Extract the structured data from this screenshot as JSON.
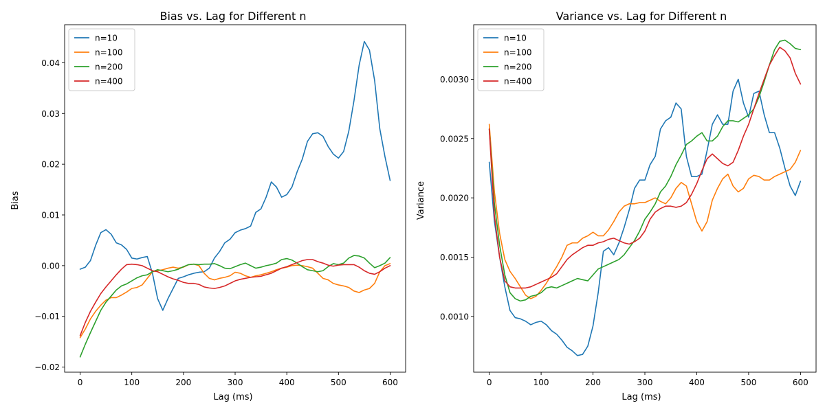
{
  "chart_data": [
    {
      "type": "line",
      "title": "Bias vs. Lag for Different n",
      "xlabel": "Lag (ms)",
      "ylabel": "Bias",
      "xlim": [
        -30,
        630
      ],
      "ylim": [
        -0.021,
        0.0475
      ],
      "xticks": [
        0,
        100,
        200,
        300,
        400,
        500,
        600
      ],
      "xtick_labels": [
        "0",
        "100",
        "200",
        "300",
        "400",
        "500",
        "600"
      ],
      "yticks": [
        -0.02,
        -0.01,
        0.0,
        0.01,
        0.02,
        0.03,
        0.04
      ],
      "ytick_labels": [
        "−0.02",
        "−0.01",
        "0.00",
        "0.01",
        "0.02",
        "0.03",
        "0.04"
      ],
      "grid": false,
      "legend": "top-left",
      "x": [
        0,
        10,
        20,
        30,
        40,
        50,
        60,
        70,
        80,
        90,
        100,
        110,
        120,
        130,
        140,
        150,
        160,
        170,
        180,
        190,
        200,
        210,
        220,
        230,
        240,
        250,
        260,
        270,
        280,
        290,
        300,
        310,
        320,
        330,
        340,
        350,
        360,
        370,
        380,
        390,
        400,
        410,
        420,
        430,
        440,
        450,
        460,
        470,
        480,
        490,
        500,
        510,
        520,
        530,
        540,
        550,
        560,
        570,
        580,
        590,
        600
      ],
      "series": [
        {
          "name": "n=10",
          "color": "#1f77b4",
          "values": [
            -0.0007,
            -0.0003,
            0.001,
            0.004,
            0.0065,
            0.0071,
            0.0062,
            0.0045,
            0.0041,
            0.0032,
            0.0015,
            0.0013,
            0.0016,
            0.0018,
            -0.0015,
            -0.0065,
            -0.0088,
            -0.0065,
            -0.0045,
            -0.0025,
            -0.0022,
            -0.0018,
            -0.0015,
            -0.0013,
            -0.0012,
            -0.0005,
            0.0015,
            0.0028,
            0.0045,
            0.0052,
            0.0065,
            0.007,
            0.0073,
            0.0078,
            0.0105,
            0.0112,
            0.0135,
            0.0165,
            0.0155,
            0.0135,
            0.014,
            0.0155,
            0.0185,
            0.021,
            0.0245,
            0.026,
            0.0262,
            0.0255,
            0.0235,
            0.022,
            0.0212,
            0.0225,
            0.0265,
            0.0325,
            0.0395,
            0.0442,
            0.0425,
            0.0365,
            0.027,
            0.0215,
            0.0168
          ]
        },
        {
          "name": "n=100",
          "color": "#ff7f0e",
          "values": [
            -0.0142,
            -0.0125,
            -0.0105,
            -0.009,
            -0.0078,
            -0.0068,
            -0.0063,
            -0.0063,
            -0.0058,
            -0.0052,
            -0.0045,
            -0.0043,
            -0.0038,
            -0.0025,
            -0.0012,
            -0.001,
            -0.0008,
            -0.0005,
            -0.0003,
            -0.0005,
            -0.0003,
            0.0002,
            0.0003,
            0.0,
            -0.0015,
            -0.0025,
            -0.0028,
            -0.0025,
            -0.0023,
            -0.002,
            -0.0013,
            -0.0015,
            -0.002,
            -0.0023,
            -0.002,
            -0.0018,
            -0.0015,
            -0.0012,
            -0.0008,
            -0.0005,
            -0.0003,
            0.0,
            0.0001,
            0.0,
            -0.0002,
            -0.0005,
            -0.0015,
            -0.0025,
            -0.0028,
            -0.0035,
            -0.0038,
            -0.004,
            -0.0043,
            -0.005,
            -0.0053,
            -0.0048,
            -0.0045,
            -0.0035,
            -0.0012,
            0.0,
            0.0004
          ]
        },
        {
          "name": "n=200",
          "color": "#2ca02c",
          "values": [
            -0.018,
            -0.0155,
            -0.0132,
            -0.011,
            -0.0088,
            -0.0072,
            -0.006,
            -0.0048,
            -0.004,
            -0.0036,
            -0.003,
            -0.0024,
            -0.002,
            -0.0018,
            -0.0012,
            -0.0008,
            -0.001,
            -0.0012,
            -0.001,
            -0.0007,
            -0.0002,
            0.0002,
            0.0003,
            0.0002,
            0.0003,
            0.0003,
            0.0004,
            0.0,
            -0.0005,
            -0.0006,
            -0.0002,
            0.0002,
            0.0005,
            0.0,
            -0.0005,
            -0.0003,
            0.0,
            0.0002,
            0.0005,
            0.0012,
            0.0014,
            0.0011,
            0.0005,
            -0.0002,
            -0.0008,
            -0.001,
            -0.0012,
            -0.001,
            -0.0002,
            0.0004,
            0.0002,
            0.0005,
            0.0015,
            0.002,
            0.0019,
            0.0015,
            0.0005,
            -0.0004,
            0.0,
            0.0005,
            0.0016
          ]
        },
        {
          "name": "n=400",
          "color": "#d62728",
          "values": [
            -0.0138,
            -0.0112,
            -0.009,
            -0.0072,
            -0.0055,
            -0.0042,
            -0.003,
            -0.0018,
            -0.0007,
            0.0002,
            0.0003,
            0.0002,
            0.0,
            -0.0005,
            -0.001,
            -0.0012,
            -0.0017,
            -0.0022,
            -0.0026,
            -0.0029,
            -0.0033,
            -0.0035,
            -0.0035,
            -0.0037,
            -0.0042,
            -0.0044,
            -0.0045,
            -0.0043,
            -0.004,
            -0.0035,
            -0.003,
            -0.0027,
            -0.0025,
            -0.0023,
            -0.0022,
            -0.0021,
            -0.0018,
            -0.0015,
            -0.001,
            -0.0005,
            -0.0002,
            0.0002,
            0.0006,
            0.001,
            0.0012,
            0.0012,
            0.0008,
            0.0005,
            0.0001,
            -0.0001,
            0.0001,
            0.0002,
            0.0002,
            0.0002,
            -0.0003,
            -0.001,
            -0.0015,
            -0.0017,
            -0.0012,
            -0.0005,
            0.0
          ]
        }
      ]
    },
    {
      "type": "line",
      "title": "Variance vs. Lag for Different n",
      "xlabel": "Lag (ms)",
      "ylabel": "Variance",
      "xlim": [
        -30,
        630
      ],
      "ylim": [
        0.00053,
        0.00346
      ],
      "xticks": [
        0,
        100,
        200,
        300,
        400,
        500,
        600
      ],
      "xtick_labels": [
        "0",
        "100",
        "200",
        "300",
        "400",
        "500",
        "600"
      ],
      "yticks": [
        0.001,
        0.0015,
        0.002,
        0.0025,
        0.003
      ],
      "ytick_labels": [
        "0.0010",
        "0.0015",
        "0.0020",
        "0.0025",
        "0.0030"
      ],
      "grid": false,
      "legend": "top-left",
      "x": [
        0,
        10,
        20,
        30,
        40,
        50,
        60,
        70,
        80,
        90,
        100,
        110,
        120,
        130,
        140,
        150,
        160,
        170,
        180,
        190,
        200,
        210,
        220,
        230,
        240,
        250,
        260,
        270,
        280,
        290,
        300,
        310,
        320,
        330,
        340,
        350,
        360,
        370,
        380,
        390,
        400,
        410,
        420,
        430,
        440,
        450,
        460,
        470,
        480,
        490,
        500,
        510,
        520,
        530,
        540,
        550,
        560,
        570,
        580,
        590,
        600
      ],
      "series": [
        {
          "name": "n=10",
          "color": "#1f77b4",
          "values": [
            0.0023,
            0.0018,
            0.0015,
            0.00125,
            0.00105,
            0.00099,
            0.00098,
            0.00096,
            0.00093,
            0.00095,
            0.00096,
            0.00093,
            0.00088,
            0.00085,
            0.0008,
            0.00074,
            0.00071,
            0.00067,
            0.00068,
            0.00075,
            0.00092,
            0.0012,
            0.00155,
            0.00158,
            0.00152,
            0.00162,
            0.00175,
            0.0019,
            0.00208,
            0.00215,
            0.00215,
            0.00228,
            0.00235,
            0.00258,
            0.00265,
            0.00268,
            0.0028,
            0.00275,
            0.00235,
            0.00218,
            0.00218,
            0.0022,
            0.0024,
            0.00262,
            0.0027,
            0.00262,
            0.00262,
            0.0029,
            0.003,
            0.0028,
            0.00268,
            0.00288,
            0.0029,
            0.0027,
            0.00255,
            0.00255,
            0.00242,
            0.00225,
            0.0021,
            0.00202,
            0.00214
          ]
        },
        {
          "name": "n=100",
          "color": "#ff7f0e",
          "values": [
            0.00262,
            0.00205,
            0.0017,
            0.00148,
            0.00138,
            0.00132,
            0.00125,
            0.00118,
            0.00115,
            0.00117,
            0.00122,
            0.00128,
            0.00135,
            0.00142,
            0.0015,
            0.0016,
            0.00162,
            0.00162,
            0.00166,
            0.00168,
            0.00171,
            0.00168,
            0.00168,
            0.00173,
            0.0018,
            0.00188,
            0.00193,
            0.00195,
            0.00195,
            0.00196,
            0.00196,
            0.00198,
            0.002,
            0.00197,
            0.00195,
            0.002,
            0.00208,
            0.00213,
            0.0021,
            0.00195,
            0.0018,
            0.00172,
            0.0018,
            0.00198,
            0.00208,
            0.00216,
            0.0022,
            0.0021,
            0.00205,
            0.00208,
            0.00216,
            0.00219,
            0.00218,
            0.00215,
            0.00215,
            0.00218,
            0.0022,
            0.00222,
            0.00224,
            0.0023,
            0.0024
          ]
        },
        {
          "name": "n=200",
          "color": "#2ca02c",
          "values": [
            0.00258,
            0.00195,
            0.0016,
            0.00135,
            0.0012,
            0.00115,
            0.00113,
            0.00114,
            0.00117,
            0.00118,
            0.0012,
            0.00124,
            0.00125,
            0.00124,
            0.00126,
            0.00128,
            0.0013,
            0.00132,
            0.00131,
            0.0013,
            0.00135,
            0.0014,
            0.00142,
            0.00144,
            0.00146,
            0.00148,
            0.00152,
            0.00158,
            0.00164,
            0.00172,
            0.00182,
            0.00188,
            0.00195,
            0.00205,
            0.0021,
            0.00218,
            0.00228,
            0.00236,
            0.00245,
            0.00248,
            0.00252,
            0.00255,
            0.00248,
            0.00248,
            0.00252,
            0.0026,
            0.00265,
            0.00265,
            0.00264,
            0.00267,
            0.0027,
            0.00275,
            0.00285,
            0.00298,
            0.00312,
            0.00325,
            0.00332,
            0.00333,
            0.0033,
            0.00326,
            0.00325
          ]
        },
        {
          "name": "n=400",
          "color": "#d62728",
          "values": [
            0.00258,
            0.00185,
            0.0015,
            0.0013,
            0.00125,
            0.00124,
            0.00124,
            0.00124,
            0.00125,
            0.00127,
            0.00129,
            0.00131,
            0.00133,
            0.00136,
            0.00142,
            0.00148,
            0.00152,
            0.00155,
            0.00158,
            0.0016,
            0.0016,
            0.00162,
            0.00163,
            0.00165,
            0.00166,
            0.00164,
            0.00162,
            0.00161,
            0.00163,
            0.00166,
            0.00172,
            0.00182,
            0.00188,
            0.00191,
            0.00193,
            0.00193,
            0.00192,
            0.00193,
            0.00196,
            0.00203,
            0.00212,
            0.00223,
            0.00233,
            0.00237,
            0.00233,
            0.00229,
            0.00227,
            0.0023,
            0.0024,
            0.00252,
            0.00262,
            0.00275,
            0.00288,
            0.003,
            0.00312,
            0.0032,
            0.00327,
            0.00324,
            0.00318,
            0.00305,
            0.00296
          ]
        }
      ]
    }
  ]
}
